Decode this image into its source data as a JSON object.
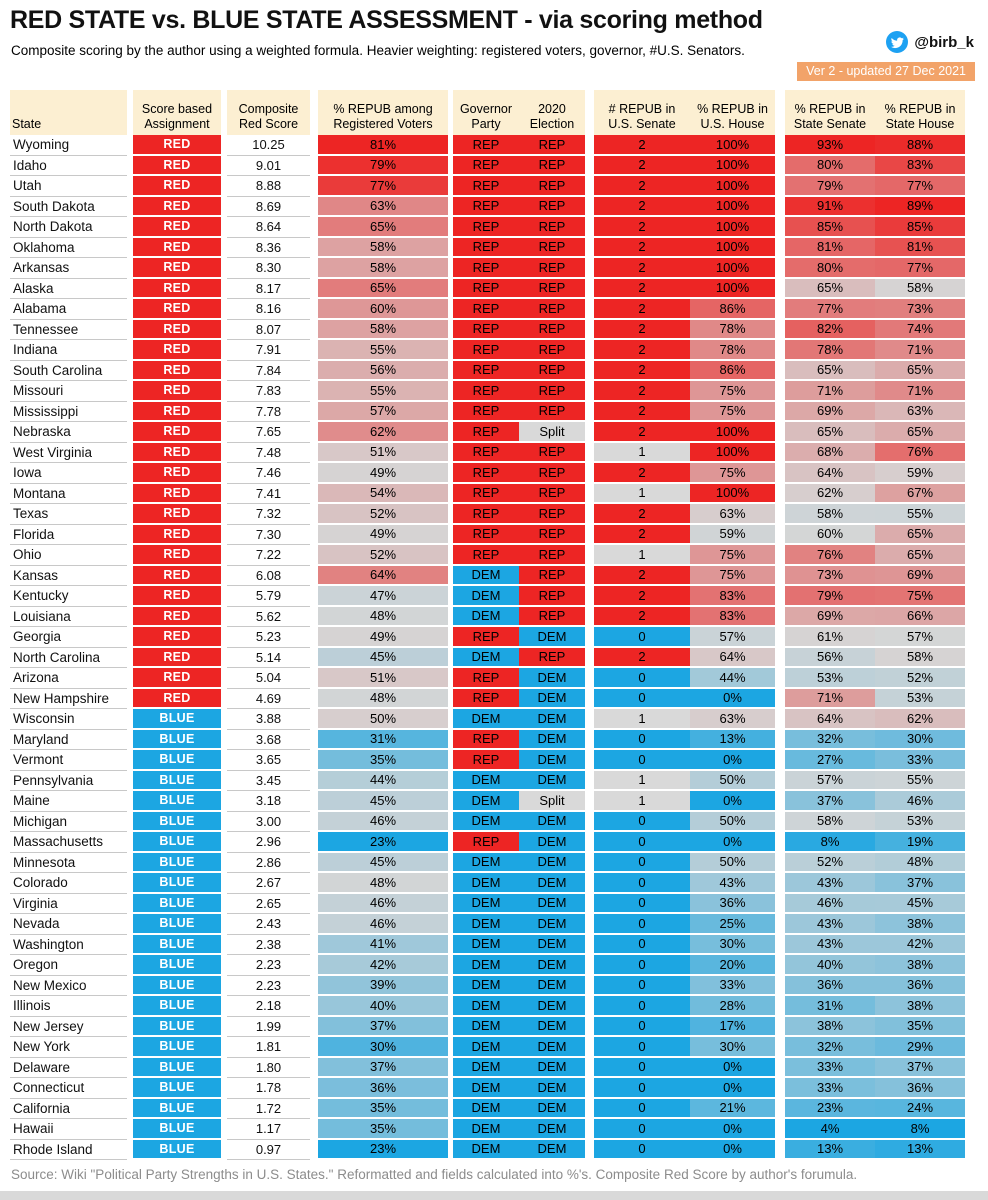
{
  "header": {
    "title": "RED STATE vs. BLUE STATE ASSESSMENT - via scoring method",
    "subtitle": "Composite scoring by the author using a weighted formula. Heavier weighting: registered voters, governor, #U.S. Senators.",
    "twitter_handle": "@birb_k",
    "version_badge": "Ver 2 - updated 27 Dec 2021"
  },
  "footer": {
    "source": "Source: Wiki \"Political Party Strengths in U.S. States.\" Reformatted and fields calculated into %'s. Composite Red Score by author's forumula."
  },
  "colors": {
    "red": "#ED2524",
    "blue": "#1CA6E2",
    "neutral": "#D9D9D9",
    "mid_gray": "#D6D6D6",
    "header_bg": "#FCEFD2",
    "badge_bg": "#F2A369",
    "twitter_blue": "#1DA1F2",
    "bottom_bar": "#D9D9D9"
  },
  "chart_data": {
    "type": "table",
    "title": "RED STATE vs. BLUE STATE ASSESSMENT - via scoring method",
    "legend_note": "Cells shaded on a blue-gray-red scale; REP/RED=red, DEM/BLUE=blue, Split/1 senator=gray",
    "columns": [
      {
        "key": "state",
        "label": "State"
      },
      {
        "key": "assignment",
        "label": "Score based\nAssignment"
      },
      {
        "key": "score",
        "label": "Composite\nRed Score"
      },
      {
        "key": "reg_voters",
        "label": "% REPUB among\nRegistered Voters"
      },
      {
        "key": "governor",
        "label": "Governor\nParty"
      },
      {
        "key": "election_2020",
        "label": "2020\nElection"
      },
      {
        "key": "us_senate",
        "label": "# REPUB in\nU.S. Senate"
      },
      {
        "key": "us_house",
        "label": "% REPUB in\nU.S. House"
      },
      {
        "key": "state_senate",
        "label": "% REPUB in\nState Senate"
      },
      {
        "key": "state_house",
        "label": "% REPUB in\nState House"
      }
    ],
    "rows": [
      {
        "state": "Wyoming",
        "assignment": "RED",
        "score": "10.25",
        "reg_voters": 81,
        "governor": "REP",
        "election_2020": "REP",
        "us_senate": 2,
        "us_house": 100,
        "state_senate": 93,
        "state_house": 88
      },
      {
        "state": "Idaho",
        "assignment": "RED",
        "score": "9.01",
        "reg_voters": 79,
        "governor": "REP",
        "election_2020": "REP",
        "us_senate": 2,
        "us_house": 100,
        "state_senate": 80,
        "state_house": 83
      },
      {
        "state": "Utah",
        "assignment": "RED",
        "score": "8.88",
        "reg_voters": 77,
        "governor": "REP",
        "election_2020": "REP",
        "us_senate": 2,
        "us_house": 100,
        "state_senate": 79,
        "state_house": 77
      },
      {
        "state": "South Dakota",
        "assignment": "RED",
        "score": "8.69",
        "reg_voters": 63,
        "governor": "REP",
        "election_2020": "REP",
        "us_senate": 2,
        "us_house": 100,
        "state_senate": 91,
        "state_house": 89
      },
      {
        "state": "North Dakota",
        "assignment": "RED",
        "score": "8.64",
        "reg_voters": 65,
        "governor": "REP",
        "election_2020": "REP",
        "us_senate": 2,
        "us_house": 100,
        "state_senate": 85,
        "state_house": 85
      },
      {
        "state": "Oklahoma",
        "assignment": "RED",
        "score": "8.36",
        "reg_voters": 58,
        "governor": "REP",
        "election_2020": "REP",
        "us_senate": 2,
        "us_house": 100,
        "state_senate": 81,
        "state_house": 81
      },
      {
        "state": "Arkansas",
        "assignment": "RED",
        "score": "8.30",
        "reg_voters": 58,
        "governor": "REP",
        "election_2020": "REP",
        "us_senate": 2,
        "us_house": 100,
        "state_senate": 80,
        "state_house": 77
      },
      {
        "state": "Alaska",
        "assignment": "RED",
        "score": "8.17",
        "reg_voters": 65,
        "governor": "REP",
        "election_2020": "REP",
        "us_senate": 2,
        "us_house": 100,
        "state_senate": 65,
        "state_house": 58
      },
      {
        "state": "Alabama",
        "assignment": "RED",
        "score": "8.16",
        "reg_voters": 60,
        "governor": "REP",
        "election_2020": "REP",
        "us_senate": 2,
        "us_house": 86,
        "state_senate": 77,
        "state_house": 73
      },
      {
        "state": "Tennessee",
        "assignment": "RED",
        "score": "8.07",
        "reg_voters": 58,
        "governor": "REP",
        "election_2020": "REP",
        "us_senate": 2,
        "us_house": 78,
        "state_senate": 82,
        "state_house": 74
      },
      {
        "state": "Indiana",
        "assignment": "RED",
        "score": "7.91",
        "reg_voters": 55,
        "governor": "REP",
        "election_2020": "REP",
        "us_senate": 2,
        "us_house": 78,
        "state_senate": 78,
        "state_house": 71
      },
      {
        "state": "South Carolina",
        "assignment": "RED",
        "score": "7.84",
        "reg_voters": 56,
        "governor": "REP",
        "election_2020": "REP",
        "us_senate": 2,
        "us_house": 86,
        "state_senate": 65,
        "state_house": 65
      },
      {
        "state": "Missouri",
        "assignment": "RED",
        "score": "7.83",
        "reg_voters": 55,
        "governor": "REP",
        "election_2020": "REP",
        "us_senate": 2,
        "us_house": 75,
        "state_senate": 71,
        "state_house": 71
      },
      {
        "state": "Mississippi",
        "assignment": "RED",
        "score": "7.78",
        "reg_voters": 57,
        "governor": "REP",
        "election_2020": "REP",
        "us_senate": 2,
        "us_house": 75,
        "state_senate": 69,
        "state_house": 63
      },
      {
        "state": "Nebraska",
        "assignment": "RED",
        "score": "7.65",
        "reg_voters": 62,
        "governor": "REP",
        "election_2020": "Split",
        "us_senate": 2,
        "us_house": 100,
        "state_senate": 65,
        "state_house": 65
      },
      {
        "state": "West Virginia",
        "assignment": "RED",
        "score": "7.48",
        "reg_voters": 51,
        "governor": "REP",
        "election_2020": "REP",
        "us_senate": 1,
        "us_house": 100,
        "state_senate": 68,
        "state_house": 76
      },
      {
        "state": "Iowa",
        "assignment": "RED",
        "score": "7.46",
        "reg_voters": 49,
        "governor": "REP",
        "election_2020": "REP",
        "us_senate": 2,
        "us_house": 75,
        "state_senate": 64,
        "state_house": 59
      },
      {
        "state": "Montana",
        "assignment": "RED",
        "score": "7.41",
        "reg_voters": 54,
        "governor": "REP",
        "election_2020": "REP",
        "us_senate": 1,
        "us_house": 100,
        "state_senate": 62,
        "state_house": 67
      },
      {
        "state": "Texas",
        "assignment": "RED",
        "score": "7.32",
        "reg_voters": 52,
        "governor": "REP",
        "election_2020": "REP",
        "us_senate": 2,
        "us_house": 63,
        "state_senate": 58,
        "state_house": 55
      },
      {
        "state": "Florida",
        "assignment": "RED",
        "score": "7.30",
        "reg_voters": 49,
        "governor": "REP",
        "election_2020": "REP",
        "us_senate": 2,
        "us_house": 59,
        "state_senate": 60,
        "state_house": 65
      },
      {
        "state": "Ohio",
        "assignment": "RED",
        "score": "7.22",
        "reg_voters": 52,
        "governor": "REP",
        "election_2020": "REP",
        "us_senate": 1,
        "us_house": 75,
        "state_senate": 76,
        "state_house": 65
      },
      {
        "state": "Kansas",
        "assignment": "RED",
        "score": "6.08",
        "reg_voters": 64,
        "governor": "DEM",
        "election_2020": "REP",
        "us_senate": 2,
        "us_house": 75,
        "state_senate": 73,
        "state_house": 69
      },
      {
        "state": "Kentucky",
        "assignment": "RED",
        "score": "5.79",
        "reg_voters": 47,
        "governor": "DEM",
        "election_2020": "REP",
        "us_senate": 2,
        "us_house": 83,
        "state_senate": 79,
        "state_house": 75
      },
      {
        "state": "Louisiana",
        "assignment": "RED",
        "score": "5.62",
        "reg_voters": 48,
        "governor": "DEM",
        "election_2020": "REP",
        "us_senate": 2,
        "us_house": 83,
        "state_senate": 69,
        "state_house": 66
      },
      {
        "state": "Georgia",
        "assignment": "RED",
        "score": "5.23",
        "reg_voters": 49,
        "governor": "REP",
        "election_2020": "DEM",
        "us_senate": 0,
        "us_house": 57,
        "state_senate": 61,
        "state_house": 57
      },
      {
        "state": "North Carolina",
        "assignment": "RED",
        "score": "5.14",
        "reg_voters": 45,
        "governor": "DEM",
        "election_2020": "REP",
        "us_senate": 2,
        "us_house": 64,
        "state_senate": 56,
        "state_house": 58
      },
      {
        "state": "Arizona",
        "assignment": "RED",
        "score": "5.04",
        "reg_voters": 51,
        "governor": "REP",
        "election_2020": "DEM",
        "us_senate": 0,
        "us_house": 44,
        "state_senate": 53,
        "state_house": 52
      },
      {
        "state": "New Hampshire",
        "assignment": "RED",
        "score": "4.69",
        "reg_voters": 48,
        "governor": "REP",
        "election_2020": "DEM",
        "us_senate": 0,
        "us_house": 0,
        "state_senate": 71,
        "state_house": 53
      },
      {
        "state": "Wisconsin",
        "assignment": "BLUE",
        "score": "3.88",
        "reg_voters": 50,
        "governor": "DEM",
        "election_2020": "DEM",
        "us_senate": 1,
        "us_house": 63,
        "state_senate": 64,
        "state_house": 62
      },
      {
        "state": "Maryland",
        "assignment": "BLUE",
        "score": "3.68",
        "reg_voters": 31,
        "governor": "REP",
        "election_2020": "DEM",
        "us_senate": 0,
        "us_house": 13,
        "state_senate": 32,
        "state_house": 30
      },
      {
        "state": "Vermont",
        "assignment": "BLUE",
        "score": "3.65",
        "reg_voters": 35,
        "governor": "REP",
        "election_2020": "DEM",
        "us_senate": 0,
        "us_house": 0,
        "state_senate": 27,
        "state_house": 33
      },
      {
        "state": "Pennsylvania",
        "assignment": "BLUE",
        "score": "3.45",
        "reg_voters": 44,
        "governor": "DEM",
        "election_2020": "DEM",
        "us_senate": 1,
        "us_house": 50,
        "state_senate": 57,
        "state_house": 55
      },
      {
        "state": "Maine",
        "assignment": "BLUE",
        "score": "3.18",
        "reg_voters": 45,
        "governor": "DEM",
        "election_2020": "Split",
        "us_senate": 1,
        "us_house": 0,
        "state_senate": 37,
        "state_house": 46
      },
      {
        "state": "Michigan",
        "assignment": "BLUE",
        "score": "3.00",
        "reg_voters": 46,
        "governor": "DEM",
        "election_2020": "DEM",
        "us_senate": 0,
        "us_house": 50,
        "state_senate": 58,
        "state_house": 53
      },
      {
        "state": "Massachusetts",
        "assignment": "BLUE",
        "score": "2.96",
        "reg_voters": 23,
        "governor": "REP",
        "election_2020": "DEM",
        "us_senate": 0,
        "us_house": 0,
        "state_senate": 8,
        "state_house": 19
      },
      {
        "state": "Minnesota",
        "assignment": "BLUE",
        "score": "2.86",
        "reg_voters": 45,
        "governor": "DEM",
        "election_2020": "DEM",
        "us_senate": 0,
        "us_house": 50,
        "state_senate": 52,
        "state_house": 48
      },
      {
        "state": "Colorado",
        "assignment": "BLUE",
        "score": "2.67",
        "reg_voters": 48,
        "governor": "DEM",
        "election_2020": "DEM",
        "us_senate": 0,
        "us_house": 43,
        "state_senate": 43,
        "state_house": 37
      },
      {
        "state": "Virginia",
        "assignment": "BLUE",
        "score": "2.65",
        "reg_voters": 46,
        "governor": "DEM",
        "election_2020": "DEM",
        "us_senate": 0,
        "us_house": 36,
        "state_senate": 46,
        "state_house": 45
      },
      {
        "state": "Nevada",
        "assignment": "BLUE",
        "score": "2.43",
        "reg_voters": 46,
        "governor": "DEM",
        "election_2020": "DEM",
        "us_senate": 0,
        "us_house": 25,
        "state_senate": 43,
        "state_house": 38
      },
      {
        "state": "Washington",
        "assignment": "BLUE",
        "score": "2.38",
        "reg_voters": 41,
        "governor": "DEM",
        "election_2020": "DEM",
        "us_senate": 0,
        "us_house": 30,
        "state_senate": 43,
        "state_house": 42
      },
      {
        "state": "Oregon",
        "assignment": "BLUE",
        "score": "2.23",
        "reg_voters": 42,
        "governor": "DEM",
        "election_2020": "DEM",
        "us_senate": 0,
        "us_house": 20,
        "state_senate": 40,
        "state_house": 38
      },
      {
        "state": "New Mexico",
        "assignment": "BLUE",
        "score": "2.23",
        "reg_voters": 39,
        "governor": "DEM",
        "election_2020": "DEM",
        "us_senate": 0,
        "us_house": 33,
        "state_senate": 36,
        "state_house": 36
      },
      {
        "state": "Illinois",
        "assignment": "BLUE",
        "score": "2.18",
        "reg_voters": 40,
        "governor": "DEM",
        "election_2020": "DEM",
        "us_senate": 0,
        "us_house": 28,
        "state_senate": 31,
        "state_house": 38
      },
      {
        "state": "New Jersey",
        "assignment": "BLUE",
        "score": "1.99",
        "reg_voters": 37,
        "governor": "DEM",
        "election_2020": "DEM",
        "us_senate": 0,
        "us_house": 17,
        "state_senate": 38,
        "state_house": 35
      },
      {
        "state": "New York",
        "assignment": "BLUE",
        "score": "1.81",
        "reg_voters": 30,
        "governor": "DEM",
        "election_2020": "DEM",
        "us_senate": 0,
        "us_house": 30,
        "state_senate": 32,
        "state_house": 29
      },
      {
        "state": "Delaware",
        "assignment": "BLUE",
        "score": "1.80",
        "reg_voters": 37,
        "governor": "DEM",
        "election_2020": "DEM",
        "us_senate": 0,
        "us_house": 0,
        "state_senate": 33,
        "state_house": 37
      },
      {
        "state": "Connecticut",
        "assignment": "BLUE",
        "score": "1.78",
        "reg_voters": 36,
        "governor": "DEM",
        "election_2020": "DEM",
        "us_senate": 0,
        "us_house": 0,
        "state_senate": 33,
        "state_house": 36
      },
      {
        "state": "California",
        "assignment": "BLUE",
        "score": "1.72",
        "reg_voters": 35,
        "governor": "DEM",
        "election_2020": "DEM",
        "us_senate": 0,
        "us_house": 21,
        "state_senate": 23,
        "state_house": 24
      },
      {
        "state": "Hawaii",
        "assignment": "BLUE",
        "score": "1.17",
        "reg_voters": 35,
        "governor": "DEM",
        "election_2020": "DEM",
        "us_senate": 0,
        "us_house": 0,
        "state_senate": 4,
        "state_house": 8
      },
      {
        "state": "Rhode Island",
        "assignment": "BLUE",
        "score": "0.97",
        "reg_voters": 23,
        "governor": "DEM",
        "election_2020": "DEM",
        "us_senate": 0,
        "us_house": 0,
        "state_senate": 13,
        "state_house": 13
      }
    ]
  }
}
